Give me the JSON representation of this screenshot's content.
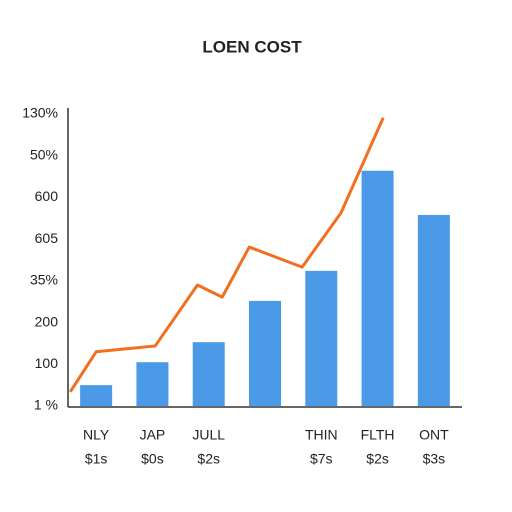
{
  "chart_data": {
    "type": "bar",
    "title": "LOEN COST",
    "categories": [
      "NLY",
      "JAP",
      "JULL",
      null,
      "THIN",
      "FLTH",
      "ONT"
    ],
    "category_sublabels": [
      "$1s",
      "$0s",
      "$2s",
      null,
      "$7s",
      "$2s",
      "$3s"
    ],
    "values": [
      50,
      105,
      153,
      252,
      324,
      564,
      458
    ],
    "color": "#4a9ae8",
    "line": {
      "type": "line",
      "color": "#f07020",
      "x": [
        -0.46,
        0,
        1.05,
        1.8,
        2.24,
        2.72,
        3.66,
        4.35,
        5.1
      ],
      "values": [
        34,
        130,
        144,
        290,
        261,
        381,
        333,
        463,
        691
      ]
    },
    "ylim": [
      0,
      700
    ],
    "yticks": [
      {
        "value": 0,
        "label": "1 %"
      },
      100,
      200,
      {
        "value": 300,
        "label": "35%"
      },
      {
        "value": 400,
        "label": "605"
      },
      {
        "value": 500,
        "label": "600"
      },
      {
        "value": 600,
        "label": "50%"
      },
      {
        "value": 700,
        "label": "130%"
      }
    ],
    "grid": false
  }
}
